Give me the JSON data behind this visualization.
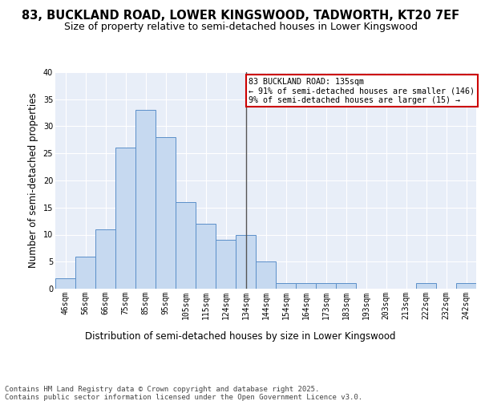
{
  "title1": "83, BUCKLAND ROAD, LOWER KINGSWOOD, TADWORTH, KT20 7EF",
  "title2": "Size of property relative to semi-detached houses in Lower Kingswood",
  "xlabel": "Distribution of semi-detached houses by size in Lower Kingswood",
  "ylabel": "Number of semi-detached properties",
  "categories": [
    "46sqm",
    "56sqm",
    "66sqm",
    "75sqm",
    "85sqm",
    "95sqm",
    "105sqm",
    "115sqm",
    "124sqm",
    "134sqm",
    "144sqm",
    "154sqm",
    "164sqm",
    "173sqm",
    "183sqm",
    "193sqm",
    "203sqm",
    "213sqm",
    "222sqm",
    "232sqm",
    "242sqm"
  ],
  "values": [
    2,
    6,
    11,
    26,
    33,
    28,
    16,
    12,
    9,
    10,
    5,
    1,
    1,
    1,
    1,
    0,
    0,
    0,
    1,
    0,
    1
  ],
  "bar_color": "#c6d9f0",
  "bar_edge_color": "#5b8fc9",
  "vline_color": "#555555",
  "annotation_text": "83 BUCKLAND ROAD: 135sqm\n← 91% of semi-detached houses are smaller (146)\n9% of semi-detached houses are larger (15) →",
  "annotation_box_color": "#ffffff",
  "annotation_box_edge_color": "#cc0000",
  "background_color": "#e8eef8",
  "grid_color": "#ffffff",
  "ylim": [
    0,
    40
  ],
  "yticks": [
    0,
    5,
    10,
    15,
    20,
    25,
    30,
    35,
    40
  ],
  "footer_text": "Contains HM Land Registry data © Crown copyright and database right 2025.\nContains public sector information licensed under the Open Government Licence v3.0.",
  "title1_fontsize": 10.5,
  "title2_fontsize": 9,
  "tick_fontsize": 7,
  "label_fontsize": 8.5,
  "footer_fontsize": 6.5
}
